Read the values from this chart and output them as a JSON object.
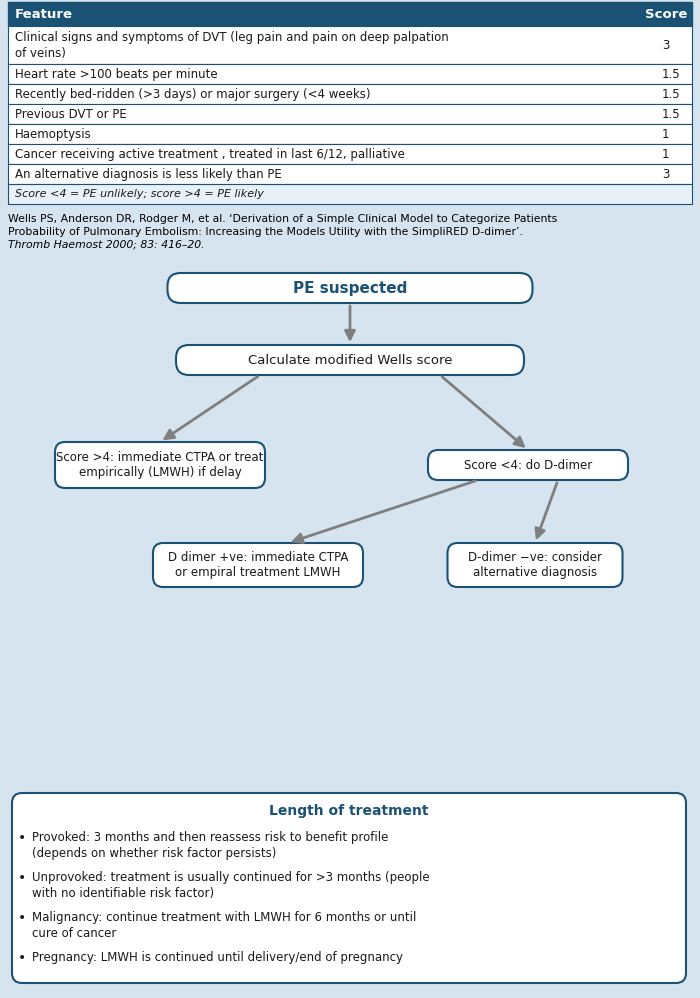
{
  "bg_color": "#d6e4f0",
  "table_header_bg": "#1a5276",
  "table_header_fg": "#ffffff",
  "table_border_color": "#1a5276",
  "table_row_bg": "#ffffff",
  "table_footer_bg": "#e8f0f8",
  "table_rows": [
    [
      "Clinical signs and symptoms of DVT (leg pain and pain on deep palpation\nof veins)",
      "3"
    ],
    [
      "Heart rate >100 beats per minute",
      "1.5"
    ],
    [
      "Recently bed-ridden (>3 days) or major surgery (<4 weeks)",
      "1.5"
    ],
    [
      "Previous DVT or PE",
      "1.5"
    ],
    [
      "Haemoptysis",
      "1"
    ],
    [
      "Cancer receiving active treatment , treated in last 6/12, palliative",
      "1"
    ],
    [
      "An alternative diagnosis is less likely than PE",
      "3"
    ]
  ],
  "table_footer": "Score <4 = PE unlikely; score >4 = PE likely",
  "ref_line1": "Wells PS, Anderson DR, Rodger M, et al. ‘Derivation of a Simple Clinical Model to Categorize Patients",
  "ref_line2": "Probability of Pulmonary Embolism: Increasing the Models Utility with the SimpliRED D-dimer’.",
  "ref_line3": "Thromb Haemost 2000; 83: 416–20.",
  "box_bg": "#ffffff",
  "box_border": "#1a5276",
  "arrow_color": "#7f7f7f",
  "blue_text": "#1a5276",
  "black_text": "#1a1a1a",
  "node_pe_suspected": "PE suspected",
  "node_wells": "Calculate modified Wells score",
  "node_score_high": "Score >4: immediate CTPA or treat\nempirically (LMWH) if delay",
  "node_score_low": "Score <4: do D-dimer",
  "node_d_pos": "D dimer +ve: immediate CTPA\nor empiral treatment LMWH",
  "node_d_neg": "D-dimer −ve: consider\nalternative diagnosis",
  "treatment_title": "Length of treatment",
  "treatment_bullets": [
    "Provoked: 3 months and then reassess risk to benefit profile\n(depends on whether risk factor persists)",
    "Unprovoked: treatment is usually continued for >3 months (people\nwith no identifiable risk factor)",
    "Malignancy: continue treatment with LMWH for 6 months or until\ncure of cancer",
    "Pregnancy: LMWH is continued until delivery/end of pregnancy"
  ]
}
